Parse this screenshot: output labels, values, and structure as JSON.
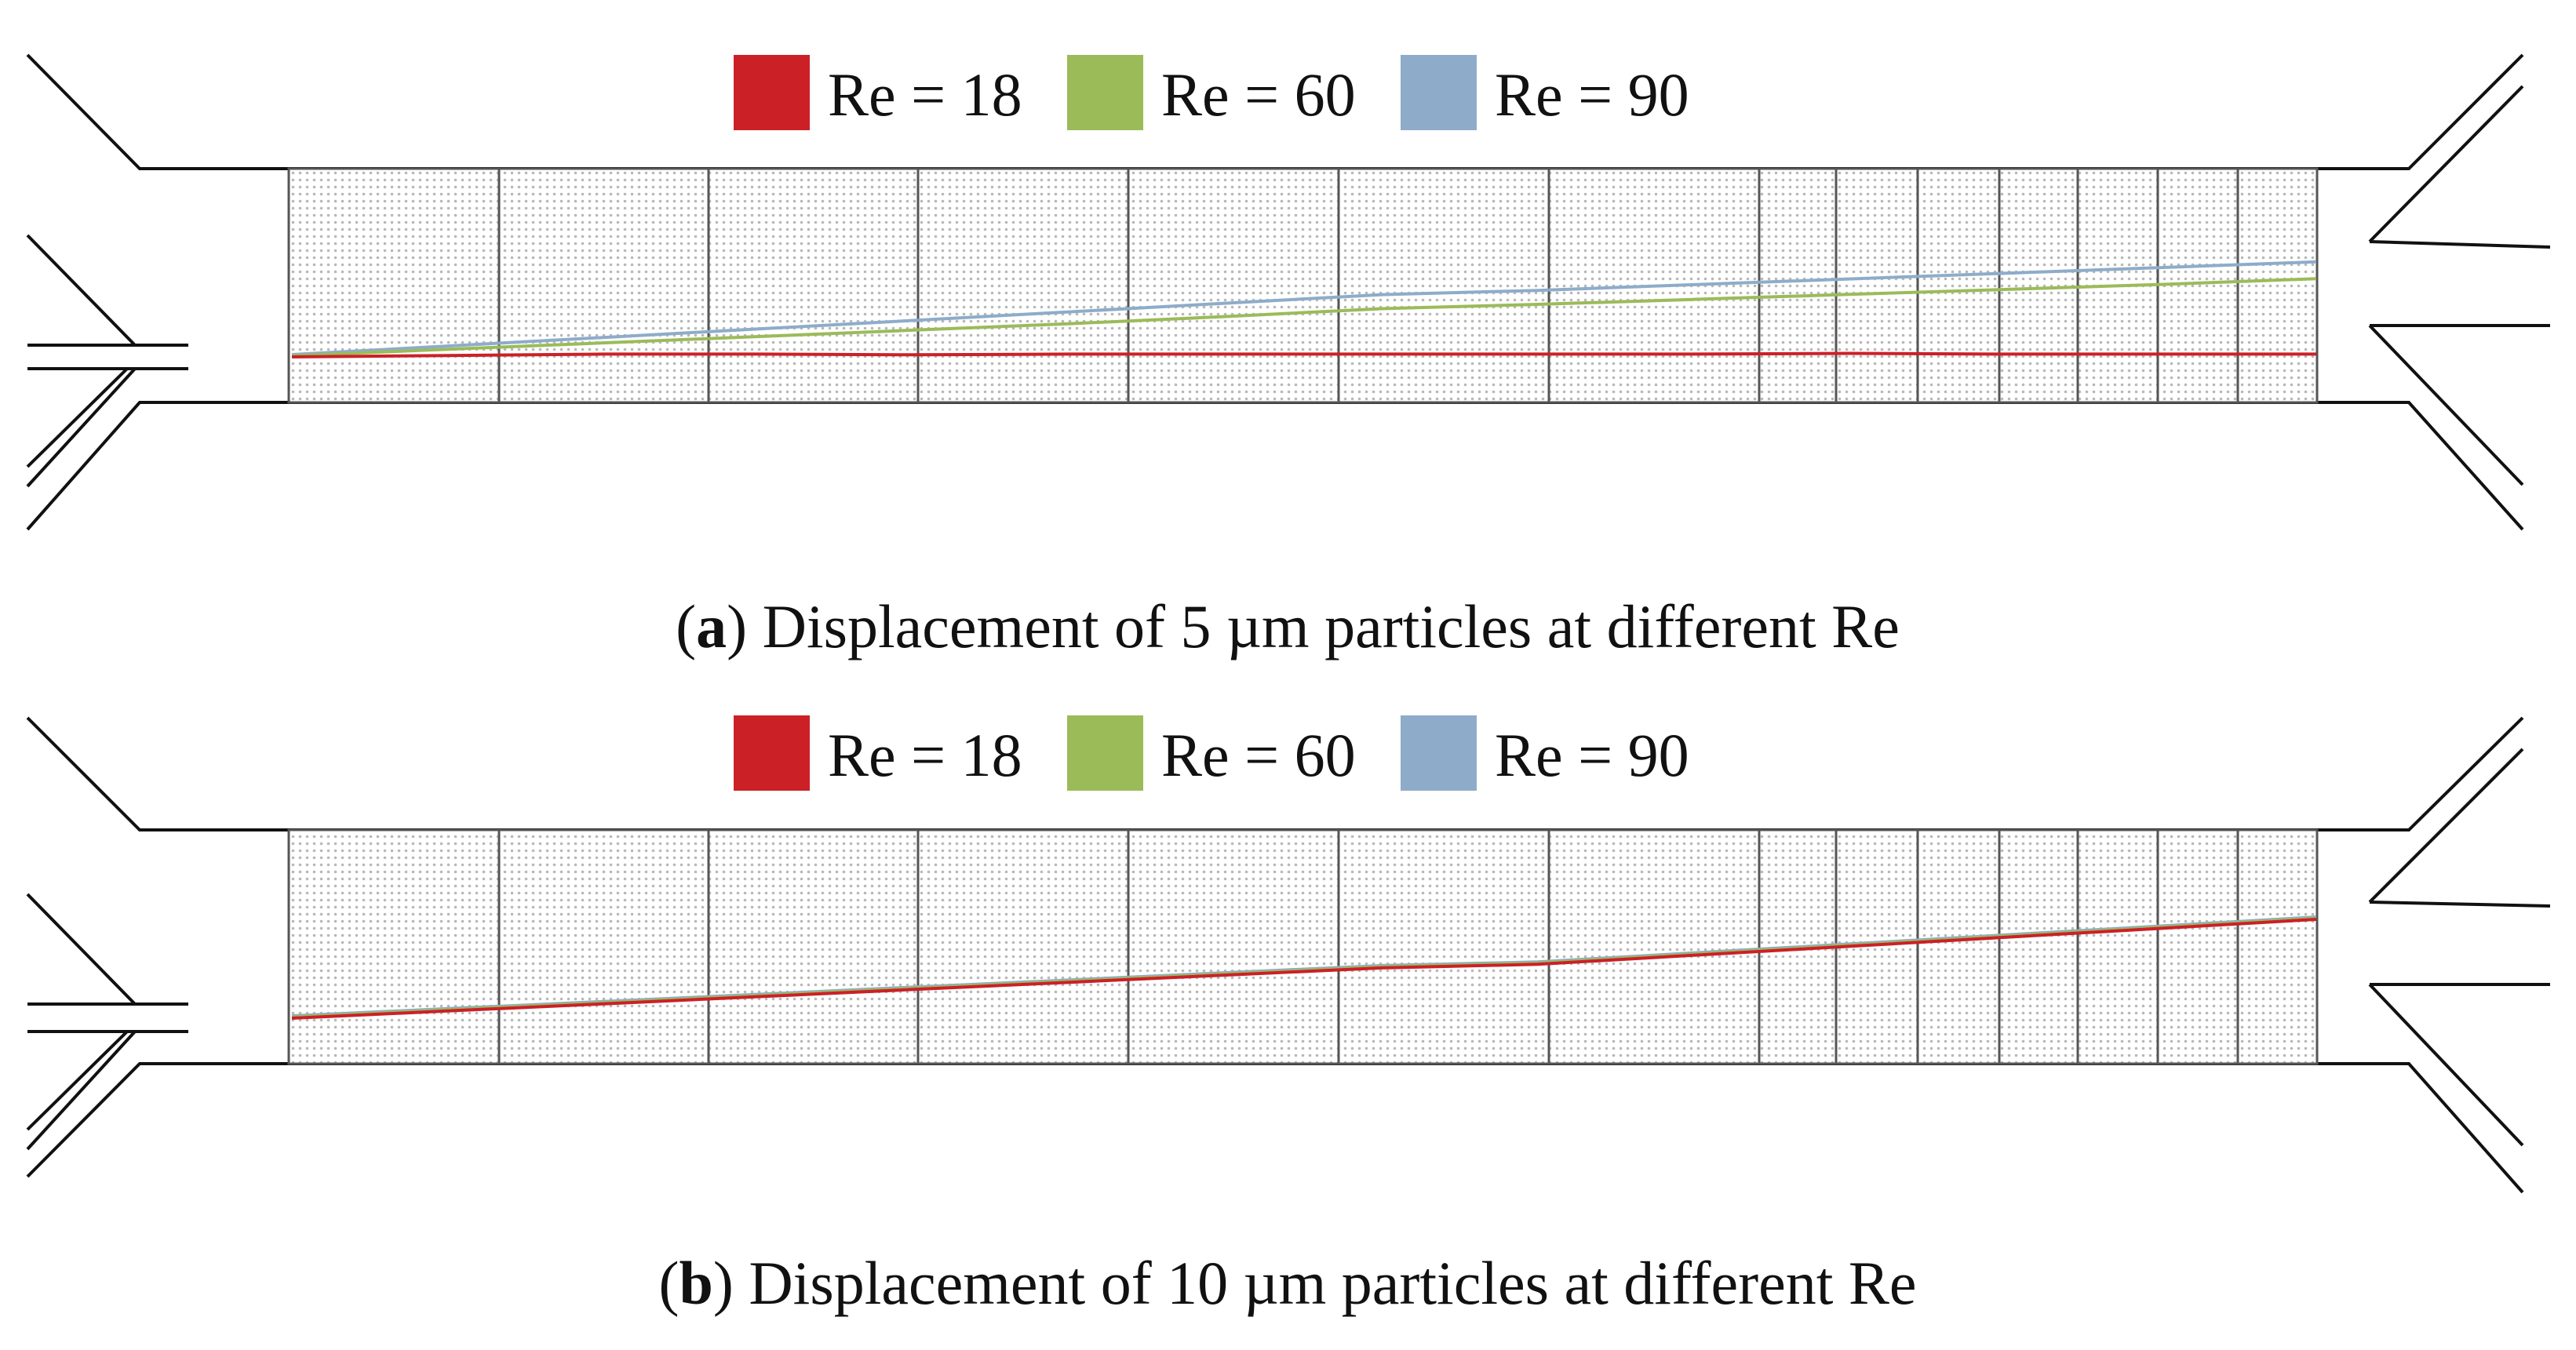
{
  "colors": {
    "re18": "#cc2027",
    "re60": "#9bbb59",
    "re90": "#8eacca",
    "wall": "#111111"
  },
  "panels": [
    {
      "id": "a",
      "letter": "a",
      "caption": "Displacement of 5 µm particles at different Re",
      "legend": [
        {
          "label": "Re = 18",
          "color_key": "re18"
        },
        {
          "label": "Re = 60",
          "color_key": "re60"
        },
        {
          "label": "Re = 90",
          "color_key": "re90"
        }
      ],
      "traces": [
        {
          "name": "Re = 90",
          "color_key": "re90",
          "lateral_shift": [
            0.0,
            0.12,
            0.24,
            0.36,
            0.48,
            0.6,
            0.72,
            0.84,
            0.9,
            0.98,
            1.06,
            1.14,
            1.22,
            1.3
          ]
        },
        {
          "name": "Re = 60",
          "color_key": "re60",
          "lateral_shift": [
            0.0,
            0.09,
            0.18,
            0.27,
            0.36,
            0.45,
            0.55,
            0.66,
            0.72,
            0.79,
            0.86,
            0.93,
            1.0,
            1.08
          ]
        },
        {
          "name": "Re = 18",
          "color_key": "re18",
          "lateral_shift": [
            0.0,
            0.02,
            0.04,
            0.04,
            0.03,
            0.04,
            0.04,
            0.04,
            0.04,
            0.04,
            0.05,
            0.04,
            0.04,
            0.04
          ]
        }
      ]
    },
    {
      "id": "b",
      "letter": "b",
      "caption": "Displacement of 10 µm particles at different Re",
      "legend": [
        {
          "label": "Re = 18",
          "color_key": "re18"
        },
        {
          "label": "Re = 60",
          "color_key": "re60"
        },
        {
          "label": "Re = 90",
          "color_key": "re90"
        }
      ],
      "traces": [
        {
          "name": "Re = 90",
          "color_key": "re90",
          "lateral_shift": [
            0.0,
            0.12,
            0.24,
            0.36,
            0.48,
            0.6,
            0.72,
            0.84,
            0.9,
            1.05,
            1.2,
            1.35,
            1.5,
            1.65
          ]
        },
        {
          "name": "Re = 60",
          "color_key": "re60",
          "lateral_shift": [
            0.0,
            0.12,
            0.24,
            0.36,
            0.48,
            0.6,
            0.72,
            0.84,
            0.9,
            1.05,
            1.2,
            1.35,
            1.5,
            1.65
          ]
        },
        {
          "name": "Re = 18",
          "color_key": "re18",
          "lateral_shift": [
            0.0,
            0.12,
            0.24,
            0.36,
            0.48,
            0.6,
            0.72,
            0.84,
            0.9,
            1.05,
            1.2,
            1.35,
            1.5,
            1.65
          ]
        }
      ]
    }
  ]
}
